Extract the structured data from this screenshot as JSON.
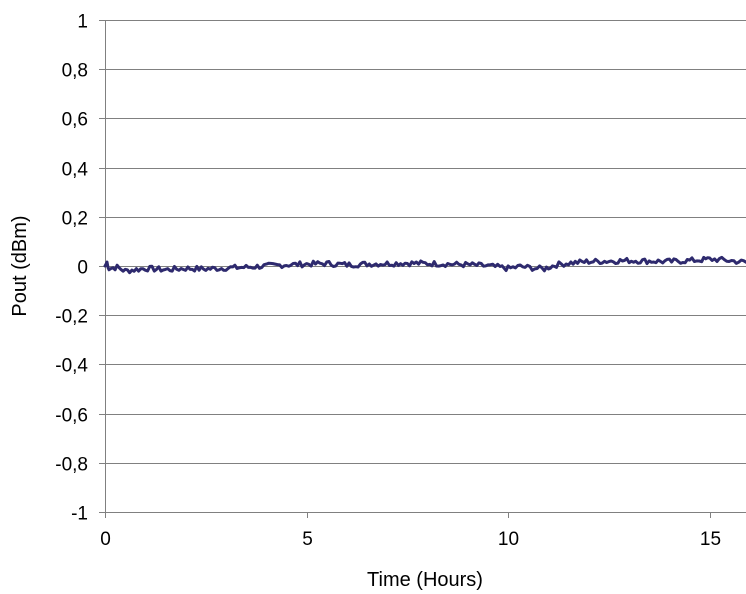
{
  "chart_data": {
    "type": "line",
    "xlabel": "Time (Hours)",
    "ylabel": "Pout (dBm)",
    "xlim": [
      0,
      15.9
    ],
    "ylim": [
      -1,
      1
    ],
    "x_ticks": [
      0,
      5,
      10,
      15
    ],
    "x_tick_labels": [
      "0",
      "5",
      "10",
      "15"
    ],
    "y_ticks": [
      1,
      0.8,
      0.6,
      0.4,
      0.2,
      0,
      -0.2,
      -0.4,
      -0.6,
      -0.8,
      -1
    ],
    "y_tick_labels": [
      "1",
      "0,8",
      "0,6",
      "0,4",
      "0,2",
      "0",
      "-0,2",
      "-0,4",
      "-0,6",
      "-0,8",
      "-1"
    ],
    "grid": "horizontal",
    "legend": "none",
    "series": [
      {
        "color": "#2e2a6e",
        "x": [
          0,
          0.05,
          0.1,
          0.3,
          0.5,
          1.0,
          1.5,
          2.0,
          2.5,
          3.0,
          3.5,
          4.0,
          4.5,
          5.0,
          5.5,
          6.0,
          6.5,
          7.0,
          7.5,
          8.0,
          8.5,
          9.0,
          9.5,
          9.8,
          10.0,
          10.3,
          10.6,
          10.9,
          11.0,
          11.2,
          11.5,
          12.0,
          12.5,
          13.0,
          13.5,
          14.0,
          14.5,
          14.8,
          15.0,
          15.3,
          15.6,
          15.9
        ],
        "y": [
          0.0,
          0.015,
          -0.01,
          -0.005,
          -0.02,
          -0.01,
          -0.015,
          -0.01,
          -0.012,
          -0.008,
          -0.005,
          0.0,
          0.005,
          0.008,
          0.01,
          0.005,
          0.008,
          0.01,
          0.012,
          0.01,
          0.008,
          0.005,
          0.0,
          -0.005,
          -0.01,
          -0.002,
          -0.008,
          -0.012,
          -0.005,
          0.005,
          0.012,
          0.018,
          0.02,
          0.022,
          0.02,
          0.018,
          0.022,
          0.025,
          0.028,
          0.025,
          0.02,
          0.015
        ]
      }
    ]
  }
}
